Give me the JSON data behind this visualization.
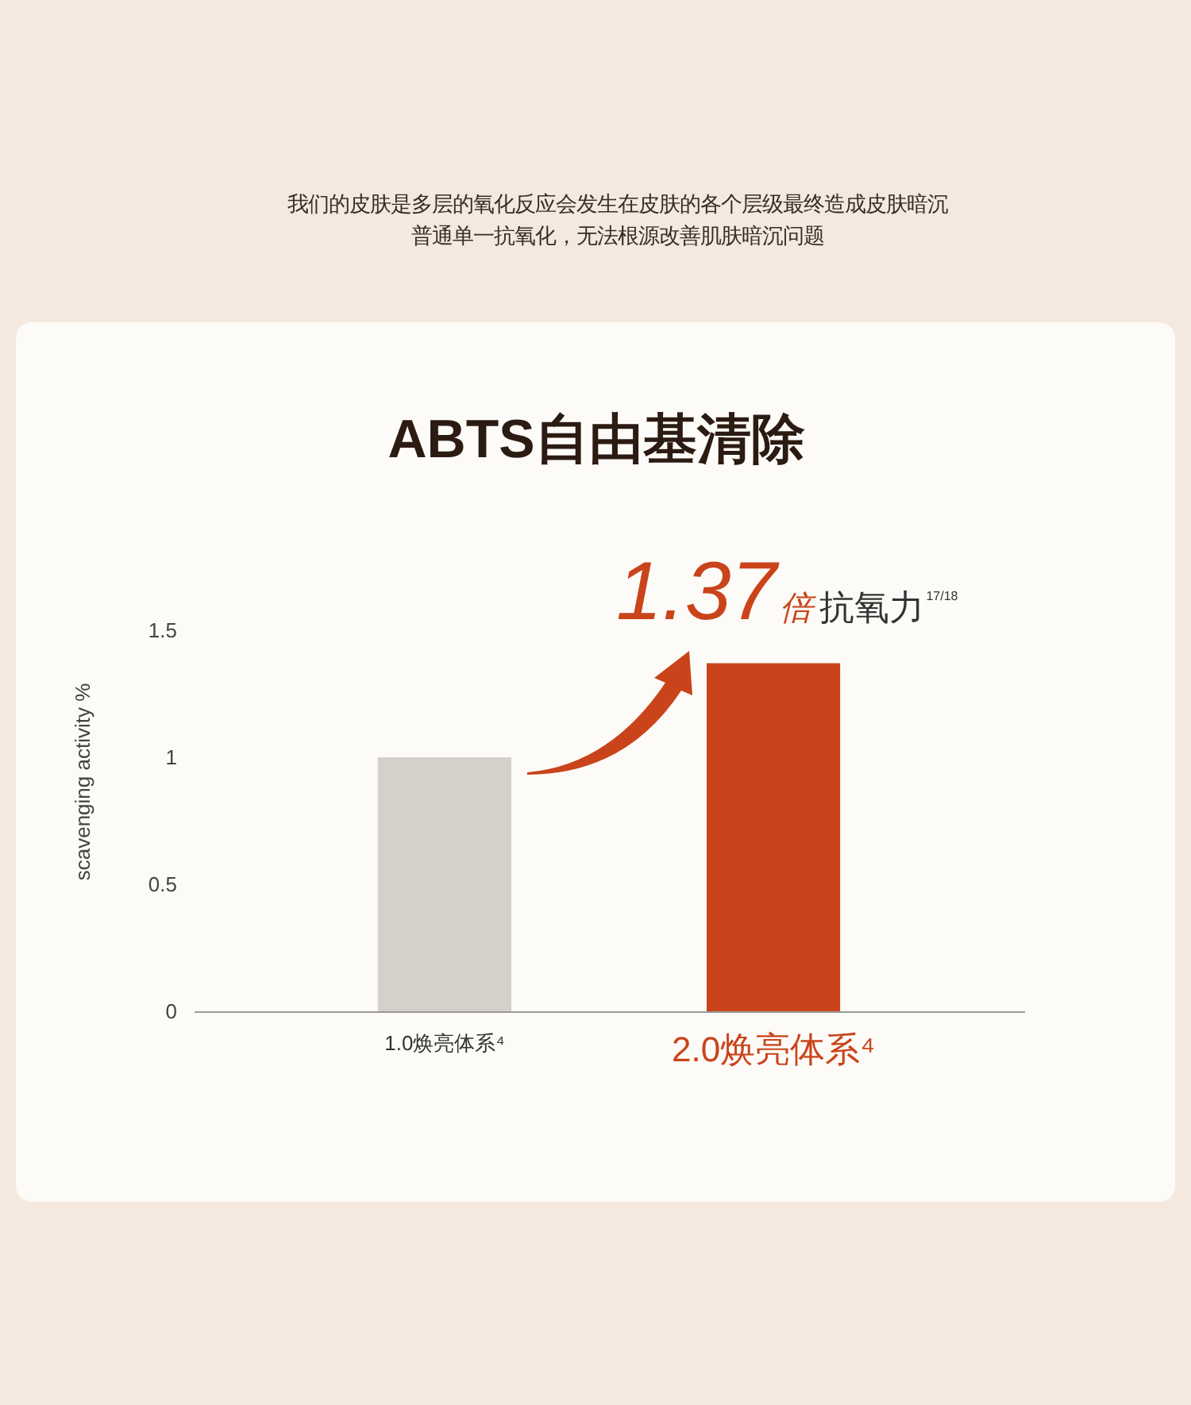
{
  "chart_data": {
    "type": "bar",
    "title": "ABTS自由基清除",
    "subtitle": "我们的皮肤是多层的氧化反应会发生在皮肤的各个层级最终造成皮肤暗沉普通单一抗氧化，无法根源改善肌肤暗沉问题",
    "ylabel": "scavenging activity %",
    "categories": [
      "1.0焕亮体系⁴",
      "2.0焕亮体系⁴"
    ],
    "values": [
      1,
      1.37
    ],
    "colors": [
      "#d6d0cb",
      "#c9441a"
    ],
    "ylim": [
      0,
      1.5
    ],
    "yticks": [
      0,
      0.5,
      1,
      1.5
    ],
    "annotations": [
      "1.37倍",
      "抗氧力$^{17/18}$"
    ]
  }
}
